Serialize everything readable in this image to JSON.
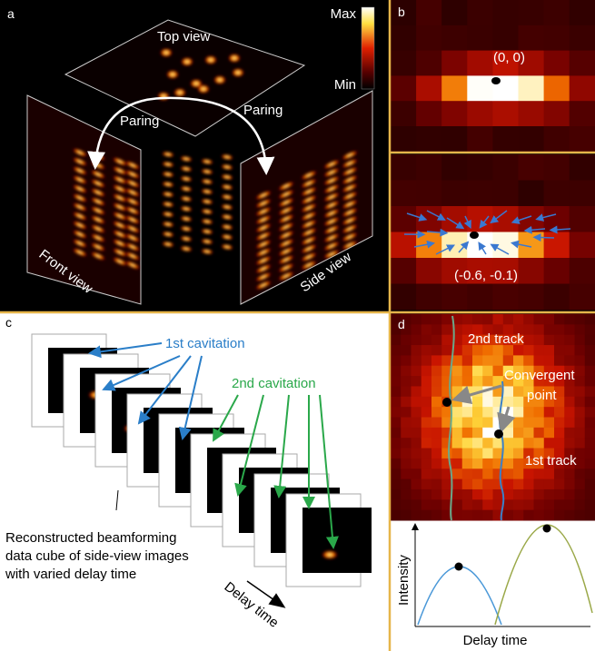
{
  "panels": [
    {
      "label": "a",
      "top_view": "Top view",
      "colorbar": {
        "max": "Max",
        "min": "Min"
      },
      "annotations": [
        "Paring",
        "Paring"
      ],
      "front_view": "Front view",
      "side_view": "Side view"
    },
    {
      "label": "b",
      "coords": [
        "(0, 0)",
        "(-0.6, -0.1)"
      ]
    },
    {
      "label": "c",
      "labels": [
        "1st cavitation",
        "2nd cavitation"
      ],
      "caption": [
        "Reconstructed beamforming",
        "data cube of side-view images",
        "with varied delay time"
      ],
      "axis": "Delay time"
    },
    {
      "label": "d",
      "labels": [
        "2nd track",
        "Convergent",
        "point",
        "1st track"
      ],
      "y_axis": "Intensity",
      "x_axis": "Delay time"
    }
  ]
}
